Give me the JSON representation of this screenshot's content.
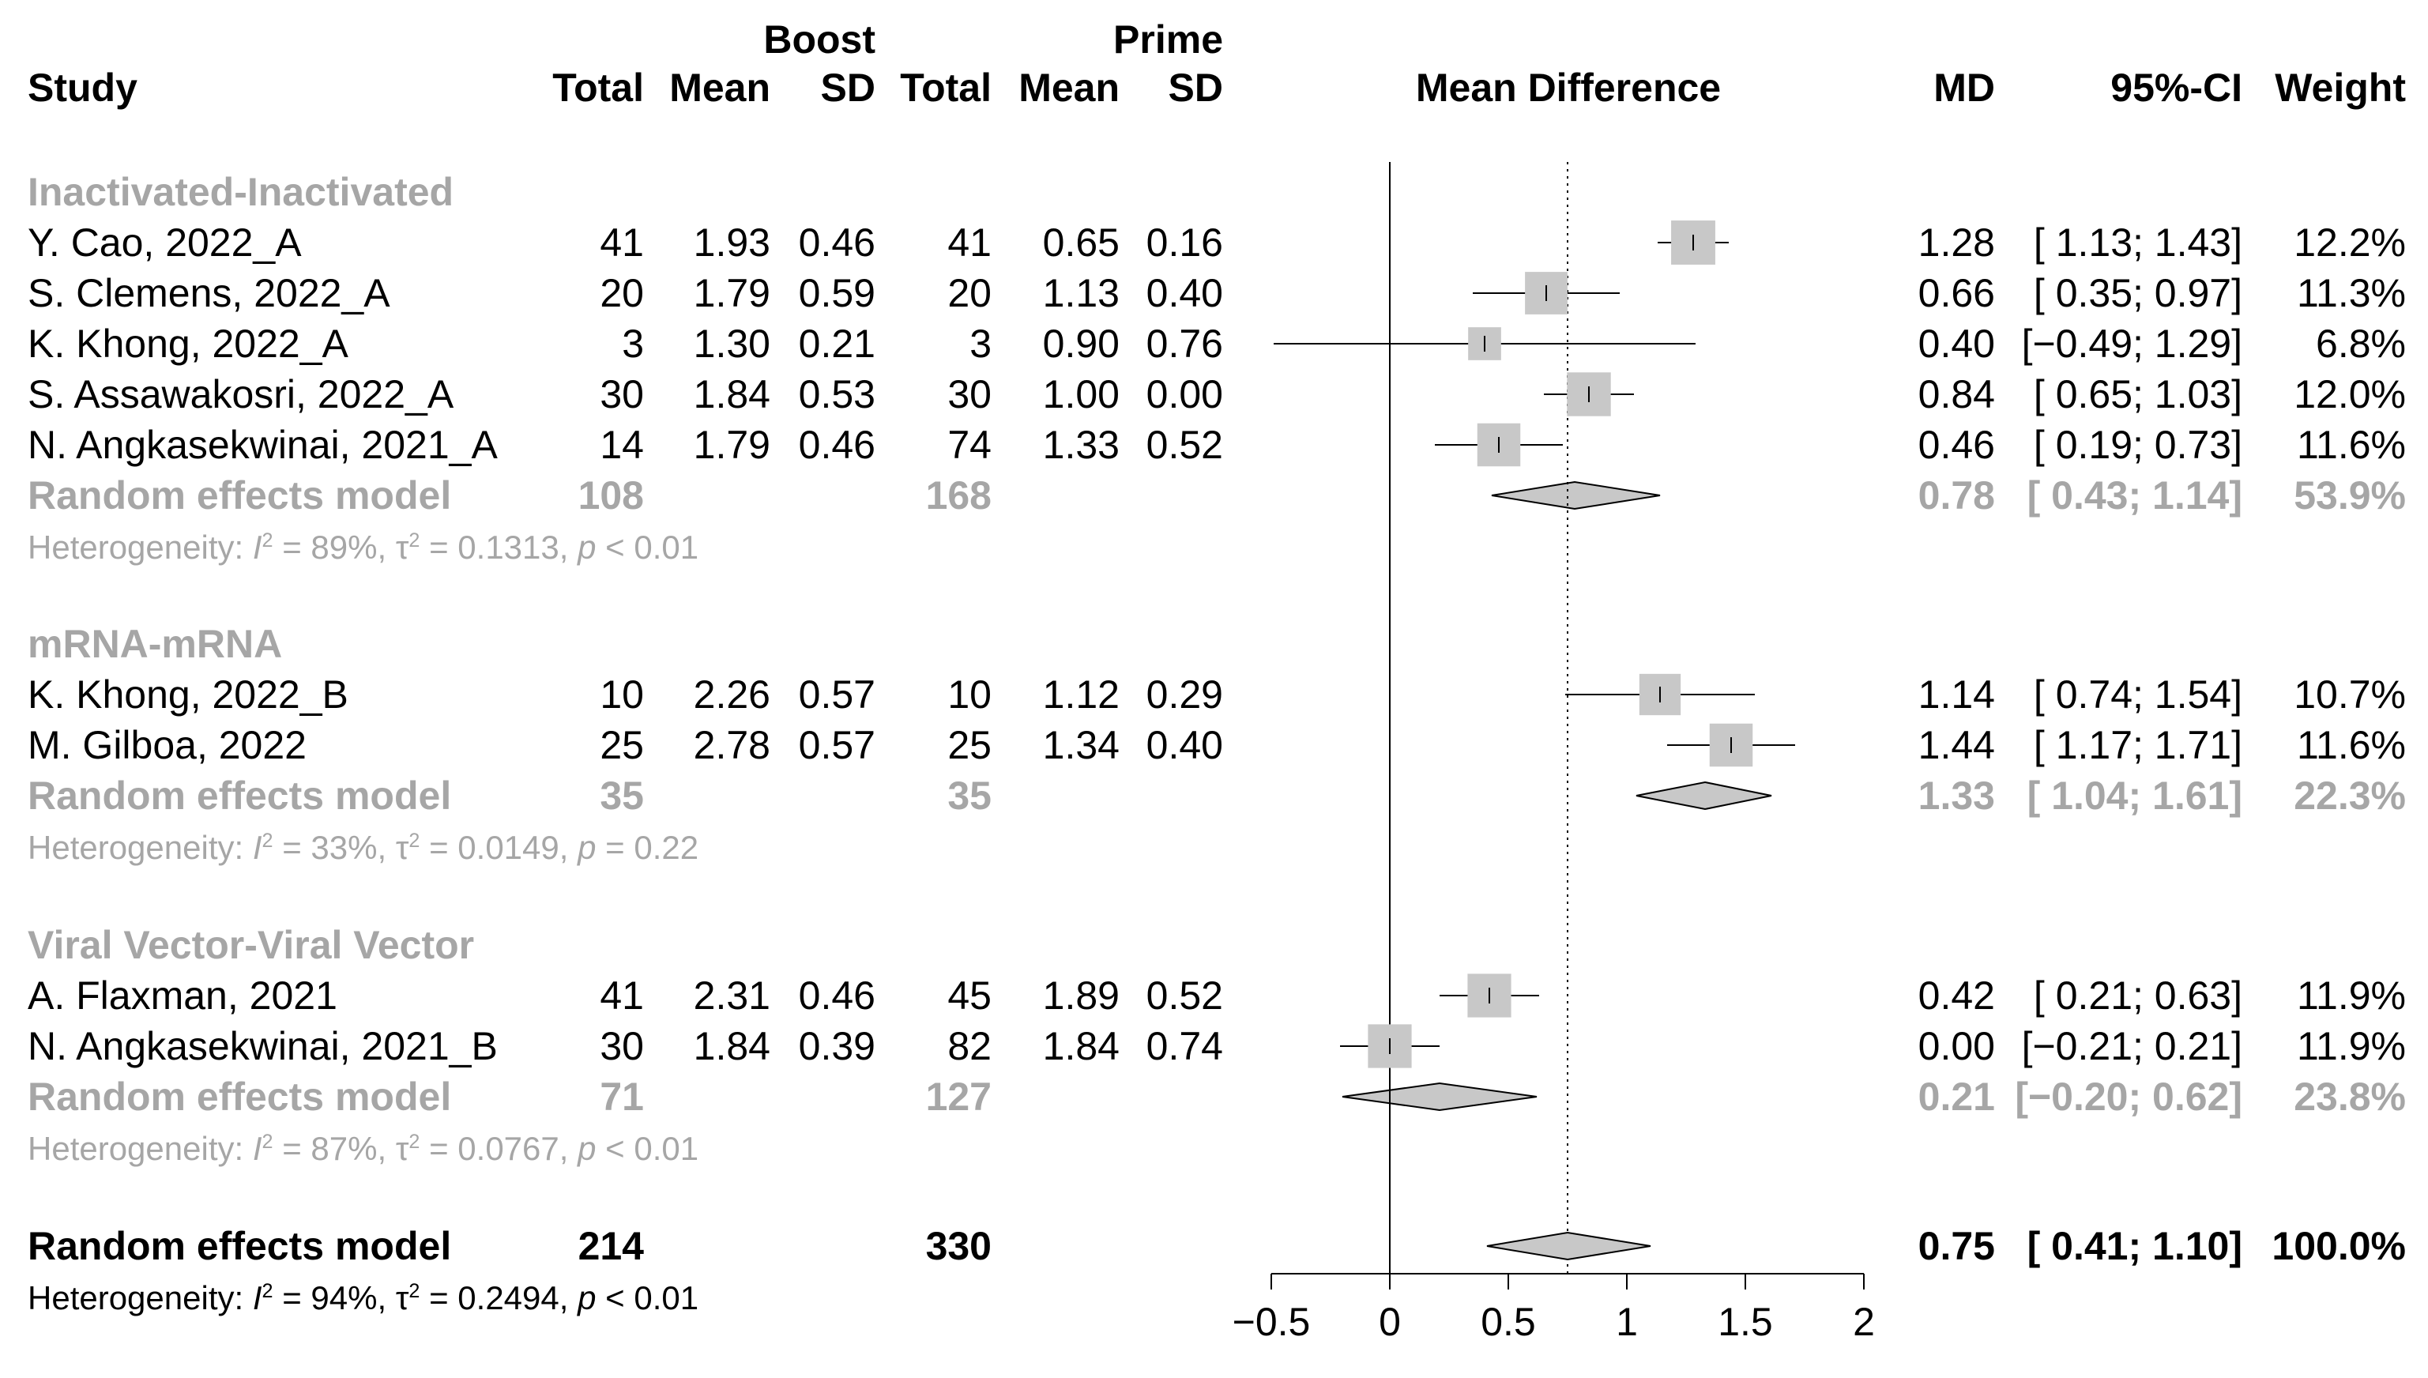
{
  "headers": {
    "boost": "Boost",
    "prime": "Prime",
    "study": "Study",
    "total": "Total",
    "mean": "Mean",
    "sd": "SD",
    "plot": "Mean Difference",
    "md": "MD",
    "ci": "95%-CI",
    "weight": "Weight"
  },
  "groups": [
    {
      "title": "Inactivated-Inactivated",
      "studies": [
        {
          "name": "Y. Cao, 2022_A",
          "b_total": "41",
          "b_mean": "1.93",
          "b_sd": "0.46",
          "p_total": "41",
          "p_mean": "0.65",
          "p_sd": "0.16",
          "md": "1.28",
          "ci": "[ 1.13; 1.43]",
          "weight": "12.2%"
        },
        {
          "name": "S. Clemens, 2022_A",
          "b_total": "20",
          "b_mean": "1.79",
          "b_sd": "0.59",
          "p_total": "20",
          "p_mean": "1.13",
          "p_sd": "0.40",
          "md": "0.66",
          "ci": "[ 0.35; 0.97]",
          "weight": "11.3%"
        },
        {
          "name": "K. Khong, 2022_A",
          "b_total": "3",
          "b_mean": "1.30",
          "b_sd": "0.21",
          "p_total": "3",
          "p_mean": "0.90",
          "p_sd": "0.76",
          "md": "0.40",
          "ci": "[−0.49; 1.29]",
          "weight": "6.8%"
        },
        {
          "name": "S. Assawakosri, 2022_A",
          "b_total": "30",
          "b_mean": "1.84",
          "b_sd": "0.53",
          "p_total": "30",
          "p_mean": "1.00",
          "p_sd": "0.00",
          "md": "0.84",
          "ci": "[ 0.65; 1.03]",
          "weight": "12.0%"
        },
        {
          "name": "N. Angkasekwinai, 2021_A",
          "b_total": "14",
          "b_mean": "1.79",
          "b_sd": "0.46",
          "p_total": "74",
          "p_mean": "1.33",
          "p_sd": "0.52",
          "md": "0.46",
          "ci": "[ 0.19; 0.73]",
          "weight": "11.6%"
        }
      ],
      "model": {
        "label": "Random effects model",
        "b_total": "108",
        "p_total": "168",
        "md": "0.78",
        "ci": "[ 0.43; 1.14]",
        "weight": "53.9%"
      },
      "heterogeneity": {
        "i2": "89%",
        "tau2": "0.1313",
        "p": "< 0.01"
      }
    },
    {
      "title": "mRNA-mRNA",
      "studies": [
        {
          "name": "K. Khong, 2022_B",
          "b_total": "10",
          "b_mean": "2.26",
          "b_sd": "0.57",
          "p_total": "10",
          "p_mean": "1.12",
          "p_sd": "0.29",
          "md": "1.14",
          "ci": "[ 0.74; 1.54]",
          "weight": "10.7%"
        },
        {
          "name": "M. Gilboa, 2022",
          "b_total": "25",
          "b_mean": "2.78",
          "b_sd": "0.57",
          "p_total": "25",
          "p_mean": "1.34",
          "p_sd": "0.40",
          "md": "1.44",
          "ci": "[ 1.17; 1.71]",
          "weight": "11.6%"
        }
      ],
      "model": {
        "label": "Random effects model",
        "b_total": "35",
        "p_total": "35",
        "md": "1.33",
        "ci": "[ 1.04; 1.61]",
        "weight": "22.3%"
      },
      "heterogeneity": {
        "i2": "33%",
        "tau2": "0.0149",
        "p": "= 0.22"
      }
    },
    {
      "title": "Viral Vector-Viral Vector",
      "studies": [
        {
          "name": "A. Flaxman, 2021",
          "b_total": "41",
          "b_mean": "2.31",
          "b_sd": "0.46",
          "p_total": "45",
          "p_mean": "1.89",
          "p_sd": "0.52",
          "md": "0.42",
          "ci": "[ 0.21; 0.63]",
          "weight": "11.9%"
        },
        {
          "name": "N. Angkasekwinai, 2021_B",
          "b_total": "30",
          "b_mean": "1.84",
          "b_sd": "0.39",
          "p_total": "82",
          "p_mean": "1.84",
          "p_sd": "0.74",
          "md": "0.00",
          "ci": "[−0.21; 0.21]",
          "weight": "11.9%"
        }
      ],
      "model": {
        "label": "Random effects model",
        "b_total": "71",
        "p_total": "127",
        "md": "0.21",
        "ci": "[−0.20; 0.62]",
        "weight": "23.8%"
      },
      "heterogeneity": {
        "i2": "87%",
        "tau2": "0.0767",
        "p": "< 0.01"
      }
    }
  ],
  "overall": {
    "label": "Random effects model",
    "b_total": "214",
    "p_total": "330",
    "md": "0.75",
    "ci": "[ 0.41; 1.10]",
    "weight": "100.0%",
    "heterogeneity": {
      "i2": "94%",
      "tau2": "0.2494",
      "p": "< 0.01"
    }
  },
  "chart_data": {
    "type": "forest",
    "title": "Mean Difference",
    "xlim": [
      -0.5,
      2
    ],
    "xticks": [
      -0.5,
      0,
      0.5,
      1,
      1.5,
      2
    ],
    "xtick_labels": [
      "−0.5",
      "0",
      "0.5",
      "1",
      "1.5",
      "2"
    ],
    "null_line": 0,
    "overall_line": 0.75,
    "studies": [
      {
        "name": "Y. Cao, 2022_A",
        "md": 1.28,
        "lower": 1.13,
        "upper": 1.43,
        "weight": 12.2
      },
      {
        "name": "S. Clemens, 2022_A",
        "md": 0.66,
        "lower": 0.35,
        "upper": 0.97,
        "weight": 11.3
      },
      {
        "name": "K. Khong, 2022_A",
        "md": 0.4,
        "lower": -0.49,
        "upper": 1.29,
        "weight": 6.8
      },
      {
        "name": "S. Assawakosri, 2022_A",
        "md": 0.84,
        "lower": 0.65,
        "upper": 1.03,
        "weight": 12.0
      },
      {
        "name": "N. Angkasekwinai, 2021_A",
        "md": 0.46,
        "lower": 0.19,
        "upper": 0.73,
        "weight": 11.6
      },
      {
        "name": "K. Khong, 2022_B",
        "md": 1.14,
        "lower": 0.74,
        "upper": 1.54,
        "weight": 10.7
      },
      {
        "name": "M. Gilboa, 2022",
        "md": 1.44,
        "lower": 1.17,
        "upper": 1.71,
        "weight": 11.6
      },
      {
        "name": "A. Flaxman, 2021",
        "md": 0.42,
        "lower": 0.21,
        "upper": 0.63,
        "weight": 11.9
      },
      {
        "name": "N. Angkasekwinai, 2021_B",
        "md": 0.0,
        "lower": -0.21,
        "upper": 0.21,
        "weight": 11.9
      }
    ],
    "subgroup_models": [
      {
        "group": "Inactivated-Inactivated",
        "md": 0.78,
        "lower": 0.43,
        "upper": 1.14
      },
      {
        "group": "mRNA-mRNA",
        "md": 1.33,
        "lower": 1.04,
        "upper": 1.61
      },
      {
        "group": "Viral Vector-Viral Vector",
        "md": 0.21,
        "lower": -0.2,
        "upper": 0.62
      }
    ],
    "overall_model": {
      "md": 0.75,
      "lower": 0.41,
      "upper": 1.1
    }
  }
}
